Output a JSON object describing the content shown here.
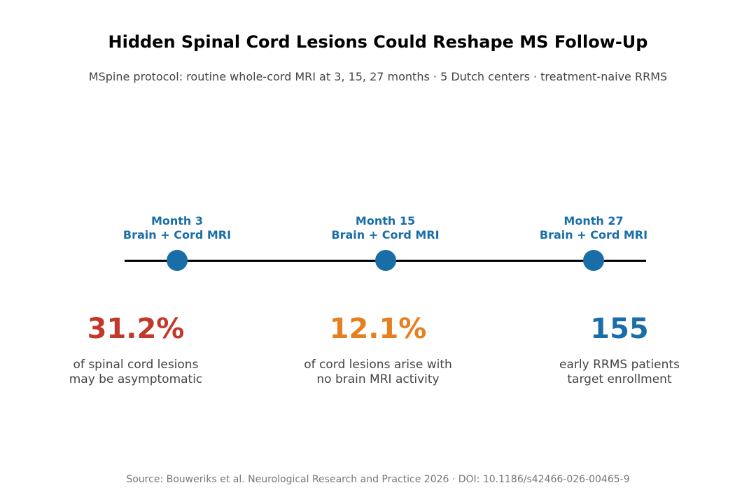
{
  "header": {
    "title": "Hidden Spinal Cord Lesions Could Reshape MS Follow-Up",
    "subtitle": "MSpine protocol: routine whole-cord MRI at 3, 15, 27 months · 5 Dutch centers · treatment-naive RRMS"
  },
  "colors": {
    "timeline": "#000000",
    "node": "#1a6ea8",
    "stat_red": "#c0392b",
    "stat_orange": "#e67e22",
    "stat_blue": "#1a6ea8"
  },
  "chart_data": {
    "type": "timeline",
    "milestones": [
      {
        "month": 3,
        "label_line1": "Month 3",
        "label_line2": "Brain + Cord MRI"
      },
      {
        "month": 15,
        "label_line1": "Month 15",
        "label_line2": "Brain + Cord MRI"
      },
      {
        "month": 27,
        "label_line1": "Month 27",
        "label_line2": "Brain + Cord MRI"
      }
    ],
    "stats": [
      {
        "value": "31.2%",
        "desc_line1": "of spinal cord lesions",
        "desc_line2": "may be asymptomatic",
        "color": "#c0392b"
      },
      {
        "value": "12.1%",
        "desc_line1": "of cord lesions arise with",
        "desc_line2": "no brain MRI activity",
        "color": "#e67e22"
      },
      {
        "value": "155",
        "desc_line1": "early RRMS patients",
        "desc_line2": "target enrollment",
        "color": "#1a6ea8"
      }
    ]
  },
  "footer": {
    "source": "Source: Bouweriks et al. Neurological Research and Practice 2026 · DOI: 10.1186/s42466-026-00465-9"
  }
}
